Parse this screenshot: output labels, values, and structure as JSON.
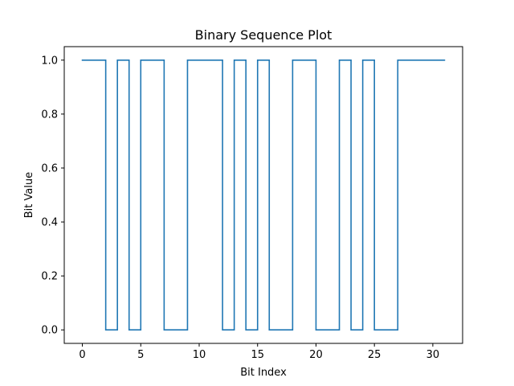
{
  "chart_data": {
    "type": "line",
    "step": "post",
    "title": "Binary Sequence Plot",
    "xlabel": "Bit Index",
    "ylabel": "Bit Value",
    "xlim": [
      -1.55,
      32.55
    ],
    "ylim": [
      -0.05,
      1.05
    ],
    "xticks": [
      0,
      5,
      10,
      15,
      20,
      25,
      30
    ],
    "xtick_labels": [
      "0",
      "5",
      "10",
      "15",
      "20",
      "25",
      "30"
    ],
    "yticks": [
      0.0,
      0.2,
      0.4,
      0.6,
      0.8,
      1.0
    ],
    "ytick_labels": [
      "0.0",
      "0.2",
      "0.4",
      "0.6",
      "0.8",
      "1.0"
    ],
    "grid": false,
    "legend": "none",
    "series": [
      {
        "color": "#1f77b4",
        "x": [
          0,
          1,
          2,
          3,
          4,
          5,
          6,
          7,
          8,
          9,
          10,
          11,
          12,
          13,
          14,
          15,
          16,
          17,
          18,
          19,
          20,
          21,
          22,
          23,
          24,
          25,
          26,
          27,
          28,
          29,
          30,
          31
        ],
        "values": [
          1,
          1,
          0,
          1,
          0,
          1,
          1,
          0,
          0,
          1,
          1,
          1,
          0,
          1,
          0,
          1,
          0,
          0,
          1,
          1,
          0,
          0,
          1,
          0,
          1,
          0,
          0,
          1,
          1,
          1,
          1,
          1
        ]
      }
    ]
  }
}
